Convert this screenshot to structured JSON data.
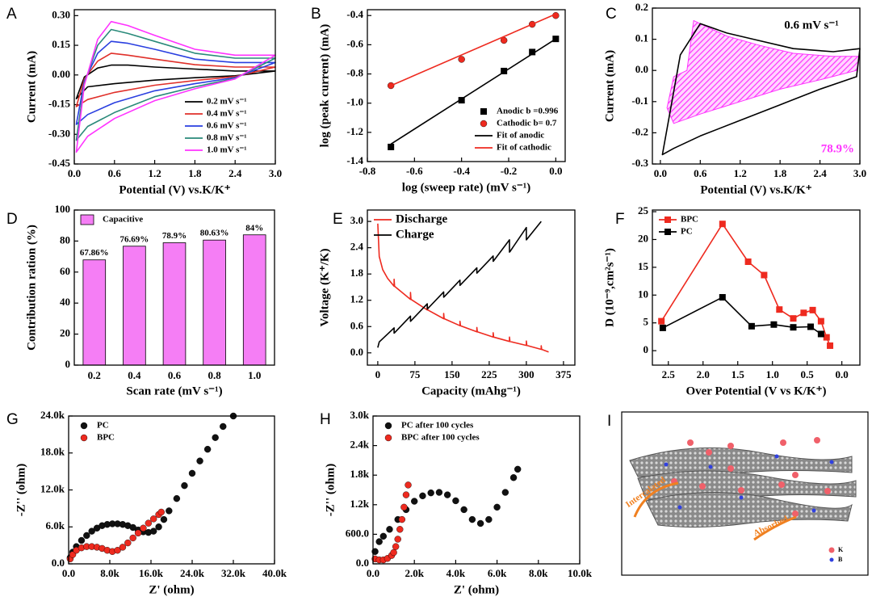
{
  "chart_data": [
    {
      "label": "A",
      "type": "line",
      "xlabel": "Potential (V) vs.K/K⁺",
      "ylabel": "Current (mA)",
      "xlim": [
        0,
        3.0
      ],
      "ylim": [
        -0.45,
        0.33
      ],
      "xticks": [
        {
          "value": 0,
          "label": "0.0"
        },
        0.6,
        1.2,
        1.8,
        2.4,
        {
          "value": 3,
          "label": "3.0"
        }
      ],
      "yticks": [
        -0.45,
        {
          "value": -0.3,
          "label": "-0.30"
        },
        -0.15,
        {
          "value": 0,
          "label": "0.00"
        },
        0.15,
        {
          "value": 0.3,
          "label": "0.30"
        }
      ],
      "legend": "lower right",
      "closed": true,
      "x": [
        0.03,
        0.15,
        0.35,
        0.55,
        0.8,
        1.2,
        1.8,
        2.4,
        3.0,
        2.4,
        1.8,
        1.2,
        0.6,
        0.2
      ],
      "series": [
        {
          "name": "0.2 mV s⁻¹",
          "color": "#000000",
          "values": [
            -0.12,
            -0.01,
            0.035,
            0.05,
            0.05,
            0.04,
            0.03,
            0.02,
            0.02,
            -0.004,
            -0.014,
            -0.026,
            -0.044,
            -0.06
          ]
        },
        {
          "name": "0.4 mV s⁻¹",
          "color": "#e0302a",
          "values": [
            -0.16,
            -0.02,
            0.07,
            0.11,
            0.1,
            0.08,
            0.052,
            0.04,
            0.04,
            -0.008,
            -0.028,
            -0.052,
            -0.088,
            -0.124
          ]
        },
        {
          "name": "0.6 mV s⁻¹",
          "color": "#2a3fe0",
          "values": [
            -0.25,
            -0.03,
            0.11,
            0.17,
            0.16,
            0.13,
            0.08,
            0.063,
            0.063,
            -0.013,
            -0.044,
            -0.08,
            -0.14,
            -0.2
          ]
        },
        {
          "name": "0.8 mV s⁻¹",
          "color": "#2a8a7a",
          "values": [
            -0.33,
            -0.04,
            0.15,
            0.23,
            0.21,
            0.17,
            0.11,
            0.085,
            0.085,
            -0.017,
            -0.06,
            -0.11,
            -0.19,
            -0.26
          ]
        },
        {
          "name": "1.0 mV s⁻¹",
          "color": "#ff33ff",
          "values": [
            -0.39,
            -0.05,
            0.18,
            0.27,
            0.25,
            0.2,
            0.13,
            0.1,
            0.1,
            -0.02,
            -0.07,
            -0.13,
            -0.22,
            -0.31
          ]
        }
      ]
    },
    {
      "label": "B",
      "type": "line",
      "xlabel": "log (sweep rate) (mV s⁻¹)",
      "ylabel": "log (peak current) (mA)",
      "xlim": [
        -0.8,
        0.04
      ],
      "ylim": [
        -1.4,
        -0.36
      ],
      "xticks": [
        -0.8,
        -0.6,
        -0.4,
        -0.2,
        {
          "value": 0,
          "label": "0.0"
        }
      ],
      "yticks": [
        -1.4,
        -1.2,
        {
          "value": -1,
          "label": "-1.0"
        },
        -0.8,
        -0.6,
        -0.4
      ],
      "legend": "lower right",
      "series": [
        {
          "name": "Anodic b =0.996",
          "color": "#000000",
          "marker": "square",
          "line": false,
          "x": [
            -0.7,
            -0.4,
            -0.22,
            -0.1,
            0
          ],
          "values": [
            -1.3,
            -0.98,
            -0.78,
            -0.65,
            -0.56
          ]
        },
        {
          "name": "Cathodic b= 0.7",
          "color": "#ee2a1f",
          "marker": "circle",
          "line": false,
          "x": [
            -0.7,
            -0.4,
            -0.22,
            -0.1,
            0
          ],
          "values": [
            -0.88,
            -0.7,
            -0.57,
            -0.46,
            -0.4
          ]
        },
        {
          "name": "Fit of anodic",
          "color": "#000000",
          "x": [
            -0.7,
            0
          ],
          "values": [
            -1.28,
            -0.56
          ]
        },
        {
          "name": "Fit of cathodic",
          "color": "#ee2a1f",
          "x": [
            -0.7,
            0
          ],
          "values": [
            -0.88,
            -0.39
          ]
        }
      ]
    },
    {
      "label": "C",
      "type": "line",
      "xlabel": "Potential (V) vs.K/K⁺",
      "ylabel": "Current (mA)",
      "xlim": [
        -0.12,
        3.0
      ],
      "ylim": [
        -0.3,
        0.2
      ],
      "xticks": [
        {
          "value": 0,
          "label": "0.0"
        },
        0.6,
        1.2,
        1.8,
        2.4,
        {
          "value": 3,
          "label": "3.0"
        }
      ],
      "yticks": [
        -0.3,
        -0.2,
        -0.1,
        {
          "value": 0,
          "label": "0.0"
        },
        0.1,
        0.2
      ],
      "closed": true,
      "annotations": [
        {
          "text": "0.6 mV s⁻¹",
          "color": "#000000"
        },
        {
          "text": "78.9%",
          "color": "#ff33ff"
        }
      ],
      "series": [
        {
          "color": "#ff33ff",
          "fill": true,
          "x": [
            0.1,
            0.2,
            0.4,
            0.5,
            0.7,
            1.0,
            1.5,
            2.0,
            2.6,
            3.0,
            2.95,
            2.4,
            1.8,
            1.2,
            0.6,
            0.2
          ],
          "values": [
            -0.12,
            -0.02,
            0.0,
            0.16,
            0.14,
            0.11,
            0.08,
            0.055,
            0.045,
            0.045,
            0.0,
            -0.03,
            -0.06,
            -0.1,
            -0.14,
            -0.17
          ]
        },
        {
          "color": "#000000",
          "x": [
            0.03,
            0.3,
            0.6,
            1.0,
            1.4,
            2.0,
            2.6,
            3.0,
            2.95,
            2.4,
            1.8,
            1.2,
            0.6,
            0.2
          ],
          "values": [
            -0.27,
            0.05,
            0.15,
            0.12,
            0.1,
            0.07,
            0.06,
            0.07,
            -0.02,
            -0.06,
            -0.11,
            -0.16,
            -0.21,
            -0.25
          ]
        }
      ]
    },
    {
      "label": "D",
      "type": "bar",
      "xlabel": "Scan rate (mV s⁻¹)",
      "ylabel": "Contribution ration (%)",
      "ylim": [
        0,
        100
      ],
      "yticks": [
        0,
        20,
        40,
        60,
        80,
        100
      ],
      "legend": "upper left",
      "categories": [
        "0.2",
        "0.4",
        "0.6",
        "0.8",
        "1.0"
      ],
      "series": [
        {
          "name": "Capacitive",
          "color": "#f57ef5",
          "values": [
            67.86,
            76.69,
            78.9,
            80.63,
            84
          ],
          "value_labels": [
            "67.86%",
            "76.69%",
            "78.9%",
            "80.63%",
            "84%"
          ]
        }
      ]
    },
    {
      "label": "E",
      "type": "line",
      "xlabel": "Capacity (mAhg⁻¹)",
      "ylabel": "Voltage (K⁺/K)",
      "xlim": [
        -21,
        398
      ],
      "ylim": [
        -0.28,
        3.26
      ],
      "xticks": [
        0,
        75,
        150,
        225,
        300,
        375
      ],
      "yticks": [
        {
          "value": 0,
          "label": "0.0"
        },
        0.6,
        1.2,
        1.8,
        2.4,
        {
          "value": 3,
          "label": "3.0"
        }
      ],
      "legend": "upper left",
      "series": [
        {
          "name": "Discharge",
          "color": "#ee2a1f",
          "x": [
            0,
            3,
            10,
            20,
            33,
            33,
            34,
            66,
            66,
            67,
            100,
            100,
            101,
            133,
            133,
            134,
            166,
            166,
            167,
            200,
            200,
            201,
            233,
            233,
            234,
            266,
            266,
            267,
            300,
            300,
            301,
            330,
            330,
            331,
            345
          ],
          "values": [
            2.95,
            2.2,
            1.9,
            1.7,
            1.52,
            1.68,
            1.52,
            1.22,
            1.38,
            1.22,
            0.98,
            1.1,
            0.98,
            0.78,
            0.9,
            0.78,
            0.62,
            0.72,
            0.62,
            0.48,
            0.58,
            0.48,
            0.36,
            0.46,
            0.36,
            0.26,
            0.36,
            0.26,
            0.17,
            0.27,
            0.17,
            0.08,
            0.16,
            0.08,
            0.02
          ]
        },
        {
          "name": "Charge",
          "color": "#000000",
          "x": [
            0,
            3,
            33,
            33,
            34,
            66,
            66,
            67,
            100,
            100,
            101,
            133,
            133,
            134,
            166,
            166,
            167,
            200,
            200,
            201,
            233,
            233,
            234,
            266,
            266,
            267,
            300,
            300,
            301,
            330
          ],
          "values": [
            0.12,
            0.25,
            0.57,
            0.45,
            0.46,
            0.84,
            0.72,
            0.73,
            1.12,
            1.0,
            1.01,
            1.39,
            1.27,
            1.28,
            1.66,
            1.54,
            1.55,
            1.94,
            1.82,
            1.83,
            2.21,
            2.09,
            2.1,
            2.58,
            2.3,
            2.31,
            2.86,
            2.58,
            2.59,
            3.0
          ]
        }
      ]
    },
    {
      "label": "F",
      "type": "line",
      "xlabel": "Over Potential (V vs K/K⁺)",
      "ylabel": "D (10⁻⁹,cm²s⁻¹)",
      "xlim": [
        2.73,
        -0.26
      ],
      "ylim": [
        -2.6,
        25.3
      ],
      "xticks": [
        2.5,
        {
          "value": 2,
          "label": "2.0"
        },
        1.5,
        {
          "value": 1,
          "label": "1.0"
        },
        0.5,
        {
          "value": 0,
          "label": "0.0"
        }
      ],
      "yticks": [
        0,
        5,
        10,
        15,
        20,
        25
      ],
      "legend": "upper left",
      "series": [
        {
          "name": "BPC",
          "color": "#ee2a1f",
          "marker": "square",
          "x": [
            2.6,
            1.72,
            1.35,
            1.12,
            0.9,
            0.7,
            0.55,
            0.42,
            0.3,
            0.22,
            0.17
          ],
          "values": [
            5.3,
            22.8,
            16,
            13.6,
            7.4,
            5.8,
            6.8,
            7.3,
            5.3,
            2.4,
            0.9
          ]
        },
        {
          "name": "PC",
          "color": "#000000",
          "marker": "square",
          "x": [
            2.58,
            1.72,
            1.3,
            0.98,
            0.7,
            0.45,
            0.3
          ],
          "values": [
            4.1,
            9.6,
            4.4,
            4.7,
            4.2,
            4.3,
            3.0
          ]
        }
      ]
    },
    {
      "label": "G",
      "type": "scatter",
      "xlabel": "Z' (ohm)",
      "ylabel": "-Z'' (ohm)",
      "xlim": [
        0,
        40000
      ],
      "ylim": [
        0,
        24000
      ],
      "xticks": [
        {
          "value": 0,
          "label": "0.0"
        },
        {
          "value": 8000,
          "label": "8.0k"
        },
        {
          "value": 16000,
          "label": "16.0k"
        },
        {
          "value": 24000,
          "label": "24.0k"
        },
        {
          "value": 32000,
          "label": "32.0k"
        },
        {
          "value": 40000,
          "label": "40.0k"
        }
      ],
      "yticks": [
        {
          "value": 0,
          "label": "0.0"
        },
        {
          "value": 6000,
          "label": "6.0k"
        },
        {
          "value": 12000,
          "label": "12.0k"
        },
        {
          "value": 18000,
          "label": "18.0k"
        },
        {
          "value": 24000,
          "label": "24.0k"
        }
      ],
      "legend": "upper left",
      "series": [
        {
          "name": "PC",
          "color": "#111111",
          "marker": "circle",
          "x": [
            300,
            800,
            1500,
            2500,
            3500,
            4500,
            5500,
            6500,
            7500,
            8500,
            9500,
            10500,
            11500,
            12500,
            13500,
            14500,
            15500,
            16500,
            17500,
            18500,
            19500,
            21000,
            22500,
            24000,
            25500,
            27000,
            28500,
            30000,
            32000
          ],
          "values": [
            1000,
            1900,
            2800,
            3800,
            4600,
            5300,
            5800,
            6200,
            6400,
            6500,
            6500,
            6400,
            6200,
            5900,
            5500,
            5200,
            5100,
            5300,
            6000,
            7200,
            8600,
            10600,
            12700,
            14700,
            16700,
            18600,
            20500,
            22300,
            24000
          ]
        },
        {
          "name": "BPC",
          "color": "#ee2a1f",
          "marker": "circle",
          "x": [
            300,
            800,
            1500,
            2500,
            3500,
            4500,
            5500,
            6500,
            7500,
            8500,
            9500,
            10500,
            11500,
            12500,
            13500,
            14500,
            15500,
            16500,
            17500,
            18000
          ],
          "values": [
            800,
            1500,
            2200,
            2600,
            2800,
            2800,
            2700,
            2500,
            2200,
            2000,
            2200,
            2700,
            3400,
            4200,
            5000,
            5800,
            6600,
            7300,
            8000,
            8400
          ]
        }
      ]
    },
    {
      "label": "H",
      "type": "scatter",
      "xlabel": "Z' (ohm)",
      "ylabel": "-Z'' (ohm)",
      "xlim": [
        0,
        10000
      ],
      "ylim": [
        0,
        3000
      ],
      "xticks": [
        {
          "value": 0,
          "label": "0.0"
        },
        {
          "value": 2000,
          "label": "2.0k"
        },
        {
          "value": 4000,
          "label": "4.0k"
        },
        {
          "value": 6000,
          "label": "6.0k"
        },
        {
          "value": 8000,
          "label": "8.0k"
        },
        {
          "value": 10000,
          "label": "10.0k"
        }
      ],
      "yticks": [
        {
          "value": 0,
          "label": "0.0"
        },
        {
          "value": 600,
          "label": "600.0"
        },
        {
          "value": 1200,
          "label": "1.2k"
        },
        {
          "value": 1800,
          "label": "1.8k"
        },
        {
          "value": 2400,
          "label": "2.4k"
        },
        {
          "value": 3000,
          "label": "3.0k"
        }
      ],
      "legend": "upper left",
      "series": [
        {
          "name": "PC after 100 cycles",
          "color": "#111111",
          "marker": "circle",
          "x": [
            100,
            300,
            500,
            800,
            1200,
            1600,
            2000,
            2400,
            2800,
            3200,
            3600,
            4000,
            4400,
            4800,
            5200,
            5600,
            6000,
            6400,
            6800,
            7000
          ],
          "values": [
            250,
            450,
            560,
            700,
            900,
            1100,
            1270,
            1380,
            1440,
            1450,
            1400,
            1280,
            1100,
            900,
            820,
            900,
            1150,
            1450,
            1750,
            1920
          ]
        },
        {
          "name": "BPC after 100 cycles",
          "color": "#ee2a1f",
          "marker": "circle",
          "x": [
            100,
            300,
            500,
            700,
            900,
            1000,
            1100,
            1200,
            1300,
            1400,
            1500,
            1600,
            1700
          ],
          "values": [
            100,
            80,
            80,
            110,
            170,
            230,
            350,
            500,
            700,
            900,
            1150,
            1400,
            1600
          ]
        }
      ]
    }
  ],
  "schematic": {
    "label": "I",
    "annotations": [
      "Intercalated",
      "Absorbed"
    ],
    "legend": [
      "K",
      "B"
    ]
  }
}
